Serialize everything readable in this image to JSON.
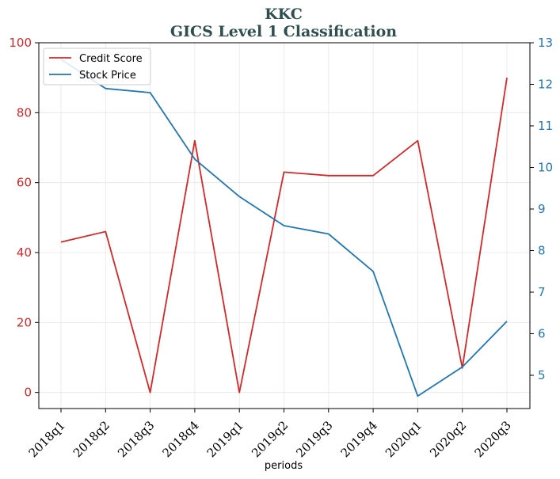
{
  "chart_data": {
    "type": "line",
    "title": "KKC",
    "subtitle": "GICS Level 1 Classification",
    "xlabel": "periods",
    "categories": [
      "2018q1",
      "2018q2",
      "2018q3",
      "2018q4",
      "2019q1",
      "2019q2",
      "2019q3",
      "2019q4",
      "2020q1",
      "2020q2",
      "2020q3"
    ],
    "series": [
      {
        "name": "Credit Score",
        "axis": "left",
        "color": "#d62728",
        "values": [
          43,
          46,
          0,
          72,
          0,
          63,
          62,
          62,
          72,
          7,
          90
        ]
      },
      {
        "name": "Stock Price",
        "axis": "right",
        "color": "#1f77b4",
        "values": [
          12.6,
          11.9,
          11.8,
          10.2,
          9.3,
          8.6,
          8.4,
          7.5,
          4.5,
          5.2,
          6.3
        ]
      }
    ],
    "left_axis": {
      "ylim": [
        -4.6,
        100
      ],
      "ticks": [
        0,
        20,
        40,
        60,
        80,
        100
      ],
      "color": "#d62728"
    },
    "right_axis": {
      "ylim": [
        4.2,
        13
      ],
      "ticks": [
        5,
        6,
        7,
        8,
        9,
        10,
        11,
        12,
        13
      ],
      "color": "#1f77b4"
    },
    "grid": true,
    "legend": "top-left"
  }
}
